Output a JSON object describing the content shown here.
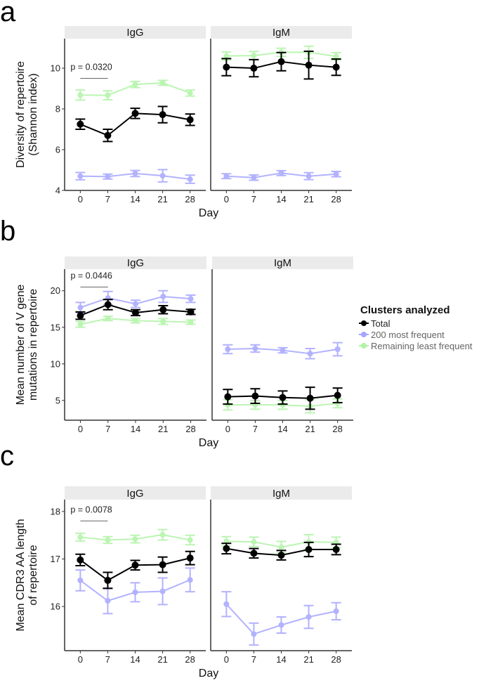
{
  "colors": {
    "Total": "#000000",
    "200 most frequent": "#7f7fff",
    "Remaining least frequent": "#8fef7f",
    "strip": "#ebebeb"
  },
  "legend": {
    "title": "Clusters analyzed",
    "position": "right",
    "items": [
      "Total",
      "200 most frequent",
      "Remaining least frequent"
    ]
  },
  "chart_data": [
    {
      "type": "line",
      "panel_label": "a",
      "ylabel": [
        "Diversity of repertoire",
        "(Shannon index)"
      ],
      "xlabel": "Day",
      "x": [
        0,
        7,
        14,
        21,
        28
      ],
      "xlim": [
        -4,
        32
      ],
      "ylim": [
        4,
        11.45
      ],
      "yticks": [
        4,
        6,
        8,
        10
      ],
      "facets": [
        {
          "name": "IgG",
          "annotation": {
            "text": "p = 0.0320",
            "from": 0,
            "to": 7,
            "y": 9.5
          },
          "series": [
            {
              "name": "Total",
              "values": [
                7.25,
                6.7,
                7.78,
                7.72,
                7.47
              ],
              "err": [
                0.25,
                0.3,
                0.25,
                0.4,
                0.28
              ]
            },
            {
              "name": "200 most frequent",
              "values": [
                4.7,
                4.68,
                4.83,
                4.72,
                4.55
              ],
              "err": [
                0.18,
                0.12,
                0.15,
                0.3,
                0.2
              ]
            },
            {
              "name": "Remaining least frequent",
              "values": [
                8.68,
                8.67,
                9.2,
                9.28,
                8.78
              ],
              "err": [
                0.25,
                0.22,
                0.15,
                0.12,
                0.15
              ]
            }
          ]
        },
        {
          "name": "IgM",
          "series": [
            {
              "name": "Total",
              "values": [
                10.05,
                10.0,
                10.32,
                10.15,
                10.05
              ],
              "err": [
                0.42,
                0.42,
                0.45,
                0.68,
                0.4
              ]
            },
            {
              "name": "200 most frequent",
              "values": [
                4.7,
                4.63,
                4.85,
                4.7,
                4.8
              ],
              "err": [
                0.12,
                0.13,
                0.12,
                0.17,
                0.13
              ]
            },
            {
              "name": "Remaining least frequent",
              "values": [
                10.6,
                10.62,
                10.78,
                10.78,
                10.58
              ],
              "err": [
                0.2,
                0.2,
                0.2,
                0.3,
                0.18
              ]
            }
          ]
        }
      ]
    },
    {
      "type": "line",
      "panel_label": "b",
      "ylabel": [
        "Mean number of V gene",
        "mutations in repertoire"
      ],
      "xlabel": "Day",
      "x": [
        0,
        7,
        14,
        21,
        28
      ],
      "xlim": [
        -4,
        32
      ],
      "ylim": [
        2.3,
        22.95
      ],
      "yticks": [
        5,
        10,
        15,
        20
      ],
      "facets": [
        {
          "name": "IgG",
          "annotation": {
            "text": "p = 0.0446",
            "from": 0,
            "to": 7,
            "y": 20.5
          },
          "series": [
            {
              "name": "Total",
              "values": [
                16.6,
                18.1,
                17.0,
                17.4,
                17.1
              ],
              "err": [
                0.5,
                0.7,
                0.4,
                0.55,
                0.35
              ]
            },
            {
              "name": "200 most frequent",
              "values": [
                17.7,
                19.0,
                18.2,
                19.2,
                18.9
              ],
              "err": [
                0.7,
                0.9,
                0.5,
                0.8,
                0.5
              ]
            },
            {
              "name": "Remaining least frequent",
              "values": [
                15.4,
                16.2,
                15.9,
                15.8,
                15.7
              ],
              "err": [
                0.4,
                0.3,
                0.3,
                0.4,
                0.3
              ]
            }
          ]
        },
        {
          "name": "IgM",
          "series": [
            {
              "name": "Total",
              "values": [
                5.5,
                5.6,
                5.4,
                5.3,
                5.7
              ],
              "err": [
                1.0,
                1.0,
                0.9,
                1.5,
                1.0
              ]
            },
            {
              "name": "200 most frequent",
              "values": [
                12.0,
                12.1,
                11.85,
                11.4,
                12.0
              ],
              "err": [
                0.6,
                0.5,
                0.35,
                0.7,
                0.9
              ]
            },
            {
              "name": "Remaining least frequent",
              "values": [
                4.4,
                4.4,
                4.4,
                4.2,
                4.6
              ],
              "err": [
                0.7,
                0.6,
                0.6,
                0.9,
                0.6
              ]
            }
          ]
        }
      ]
    },
    {
      "type": "line",
      "panel_label": "c",
      "ylabel": [
        "Mean CDR3 AA length",
        "of repertoire"
      ],
      "xlabel": "Day",
      "x": [
        0,
        7,
        14,
        21,
        28
      ],
      "xlim": [
        -4,
        32
      ],
      "ylim": [
        15.07,
        18.25
      ],
      "yticks": [
        16,
        17,
        18
      ],
      "facets": [
        {
          "name": "IgG",
          "annotation": {
            "text": "p = 0.0078",
            "from": 0,
            "to": 7,
            "y": 17.8
          },
          "series": [
            {
              "name": "Total",
              "values": [
                16.98,
                16.55,
                16.87,
                16.88,
                17.02
              ],
              "err": [
                0.12,
                0.17,
                0.1,
                0.16,
                0.14
              ]
            },
            {
              "name": "200 most frequent",
              "values": [
                16.55,
                16.12,
                16.3,
                16.32,
                16.56
              ],
              "err": [
                0.22,
                0.27,
                0.2,
                0.28,
                0.25
              ]
            },
            {
              "name": "Remaining least frequent",
              "values": [
                17.46,
                17.4,
                17.42,
                17.51,
                17.4
              ],
              "err": [
                0.08,
                0.07,
                0.08,
                0.11,
                0.1
              ]
            }
          ]
        },
        {
          "name": "IgM",
          "series": [
            {
              "name": "Total",
              "values": [
                17.22,
                17.12,
                17.08,
                17.2,
                17.2
              ],
              "err": [
                0.11,
                0.1,
                0.1,
                0.15,
                0.11
              ]
            },
            {
              "name": "200 most frequent",
              "values": [
                16.05,
                15.42,
                15.61,
                15.78,
                15.9
              ],
              "err": [
                0.26,
                0.23,
                0.17,
                0.24,
                0.18
              ]
            },
            {
              "name": "Remaining least frequent",
              "values": [
                17.37,
                17.36,
                17.25,
                17.36,
                17.35
              ],
              "err": [
                0.1,
                0.1,
                0.12,
                0.15,
                0.11
              ]
            }
          ]
        }
      ]
    }
  ]
}
